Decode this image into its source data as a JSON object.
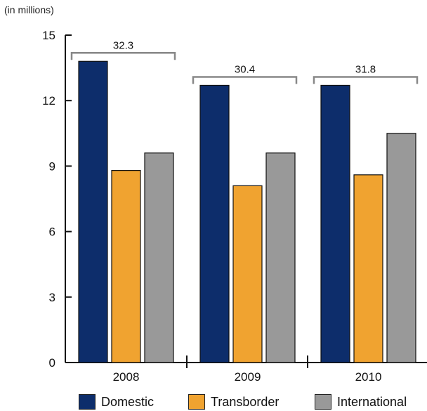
{
  "chart_data": {
    "type": "bar",
    "unit_label": "(in millions)",
    "categories": [
      "2008",
      "2009",
      "2010"
    ],
    "series": [
      {
        "name": "Domestic",
        "values": [
          13.8,
          12.7,
          12.7
        ],
        "color": "#0d2d6b"
      },
      {
        "name": "Transborder",
        "values": [
          8.8,
          8.1,
          8.6
        ],
        "color": "#f0a330"
      },
      {
        "name": "International",
        "values": [
          9.6,
          9.6,
          10.5
        ],
        "color": "#999999"
      }
    ],
    "group_totals": [
      "32.3",
      "30.4",
      "31.8"
    ],
    "ylim": [
      0,
      15
    ],
    "yticks": [
      "0",
      "3",
      "6",
      "9",
      "12",
      "15"
    ],
    "legend_position": "bottom",
    "grid": false
  }
}
